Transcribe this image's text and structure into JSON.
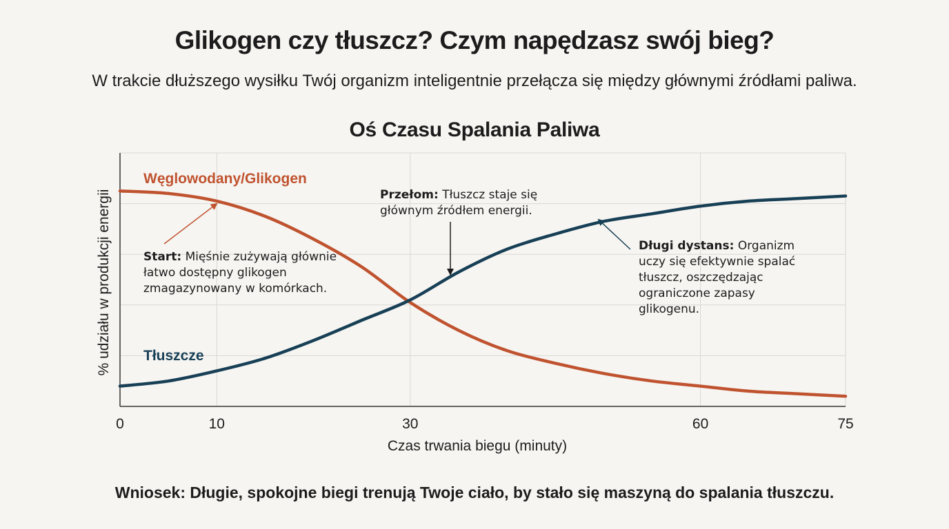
{
  "header": {
    "title": "Glikogen czy tłuszcz? Czym napędzasz swój bieg?",
    "subtitle": "W trakcie dłuższego wysiłku Twój organizm inteligentnie przełącza się między głównymi źródłami paliwa."
  },
  "chart_data": {
    "type": "line",
    "title": "Oś Czasu Spalania Paliwa",
    "xlabel": "Czas trwania biegu (minuty)",
    "ylabel": "% udziału w produkcji energii",
    "xlim": [
      0,
      75
    ],
    "ylim": [
      0,
      100
    ],
    "x_ticks": [
      0,
      10,
      30,
      60,
      75
    ],
    "grid": true,
    "colors": {
      "glycogen": "#c0532f",
      "fat": "#173f55"
    },
    "series": [
      {
        "name": "Węglowodany/Glikogen",
        "x": [
          0,
          5,
          10,
          15,
          20,
          25,
          30,
          35,
          40,
          45,
          50,
          55,
          60,
          65,
          70,
          75
        ],
        "values": [
          85,
          84,
          81,
          75,
          66,
          55,
          41,
          30,
          22,
          17,
          13,
          10,
          8,
          6,
          5,
          4
        ]
      },
      {
        "name": "Tłuszcze",
        "x": [
          0,
          5,
          10,
          15,
          20,
          25,
          30,
          35,
          40,
          45,
          50,
          55,
          60,
          65,
          70,
          75
        ],
        "values": [
          8,
          10,
          14,
          19,
          26,
          34,
          42,
          53,
          62,
          68,
          73,
          76,
          79,
          81,
          82,
          83
        ]
      }
    ],
    "annotations": {
      "start": {
        "bold": "Start:",
        "text": "Mięśnie zużywają głównie łatwo dostępny glikogen zmagazynowany w komórkach."
      },
      "crossover": {
        "bold": "Przełom:",
        "text": "Tłuszcz staje się głównym źródłem energii."
      },
      "long": {
        "bold": "Długi dystans:",
        "text": "Organizm uczy się efektywnie spalać tłuszcz, oszczędzając ograniczone zapasy glikogenu."
      }
    }
  },
  "footer": {
    "conclusion": "Wniosek: Długie, spokojne biegi trenują Twoje ciało, by stało się maszyną do spalania tłuszczu."
  }
}
